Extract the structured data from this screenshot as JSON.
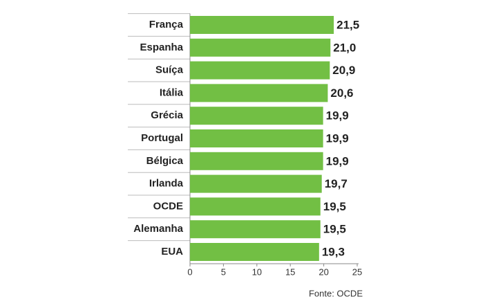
{
  "chart_data": {
    "type": "hbar",
    "categories": [
      "França",
      "Espanha",
      "Suíça",
      "Itália",
      "Grécia",
      "Portugal",
      "Bélgica",
      "Irlanda",
      "OCDE",
      "Alemanha",
      "EUA"
    ],
    "values": [
      21.5,
      21.0,
      20.9,
      20.6,
      19.9,
      19.9,
      19.9,
      19.7,
      19.5,
      19.5,
      19.3
    ],
    "value_labels": [
      "21,5",
      "21,0",
      "20,9",
      "20,6",
      "19,9",
      "19,9",
      "19,9",
      "19,7",
      "19,5",
      "19,5",
      "19,3"
    ],
    "color": "#72bf44",
    "xlim": [
      0,
      25
    ],
    "xticks": [
      0,
      5,
      10,
      15,
      20,
      25
    ],
    "source": "Fonte: OCDE"
  }
}
